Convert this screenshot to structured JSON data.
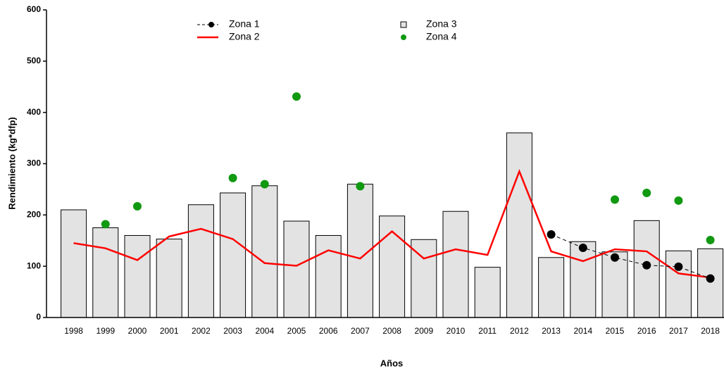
{
  "chart_data": {
    "type": "combo",
    "y_label": "Rendimiento (kg*dfp)",
    "x_label": "Años",
    "categories": [
      "1998",
      "1999",
      "2000",
      "2001",
      "2002",
      "2003",
      "2004",
      "2005",
      "2006",
      "2007",
      "2008",
      "2009",
      "2010",
      "2011",
      "2012",
      "2013",
      "2014",
      "2015",
      "2016",
      "2017",
      "2018"
    ],
    "ylim": [
      0,
      600
    ],
    "yticks": [
      0,
      100,
      200,
      300,
      400,
      500,
      600
    ],
    "series": [
      {
        "name": "Zona 1",
        "type": "dashed-line",
        "color": "#000000",
        "values": [
          null,
          null,
          null,
          null,
          null,
          null,
          null,
          null,
          null,
          null,
          null,
          null,
          null,
          null,
          null,
          162,
          136,
          117,
          102,
          99,
          76
        ]
      },
      {
        "name": "Zona 2",
        "type": "line",
        "color": "#ff0000",
        "values": [
          145,
          135,
          112,
          158,
          173,
          153,
          106,
          101,
          131,
          115,
          168,
          115,
          133,
          122,
          285,
          129,
          110,
          133,
          129,
          86,
          78
        ]
      },
      {
        "name": "Zona 3",
        "type": "bar",
        "color": "#e3e3e3",
        "values": [
          210,
          175,
          160,
          153,
          220,
          243,
          257,
          188,
          160,
          260,
          198,
          152,
          207,
          98,
          360,
          117,
          148,
          128,
          189,
          130,
          134
        ]
      },
      {
        "name": "Zona 4",
        "type": "scatter",
        "color": "#119911",
        "values": [
          null,
          182,
          217,
          null,
          null,
          272,
          260,
          431,
          null,
          256,
          null,
          null,
          null,
          null,
          null,
          null,
          null,
          230,
          243,
          228,
          151
        ]
      }
    ]
  }
}
